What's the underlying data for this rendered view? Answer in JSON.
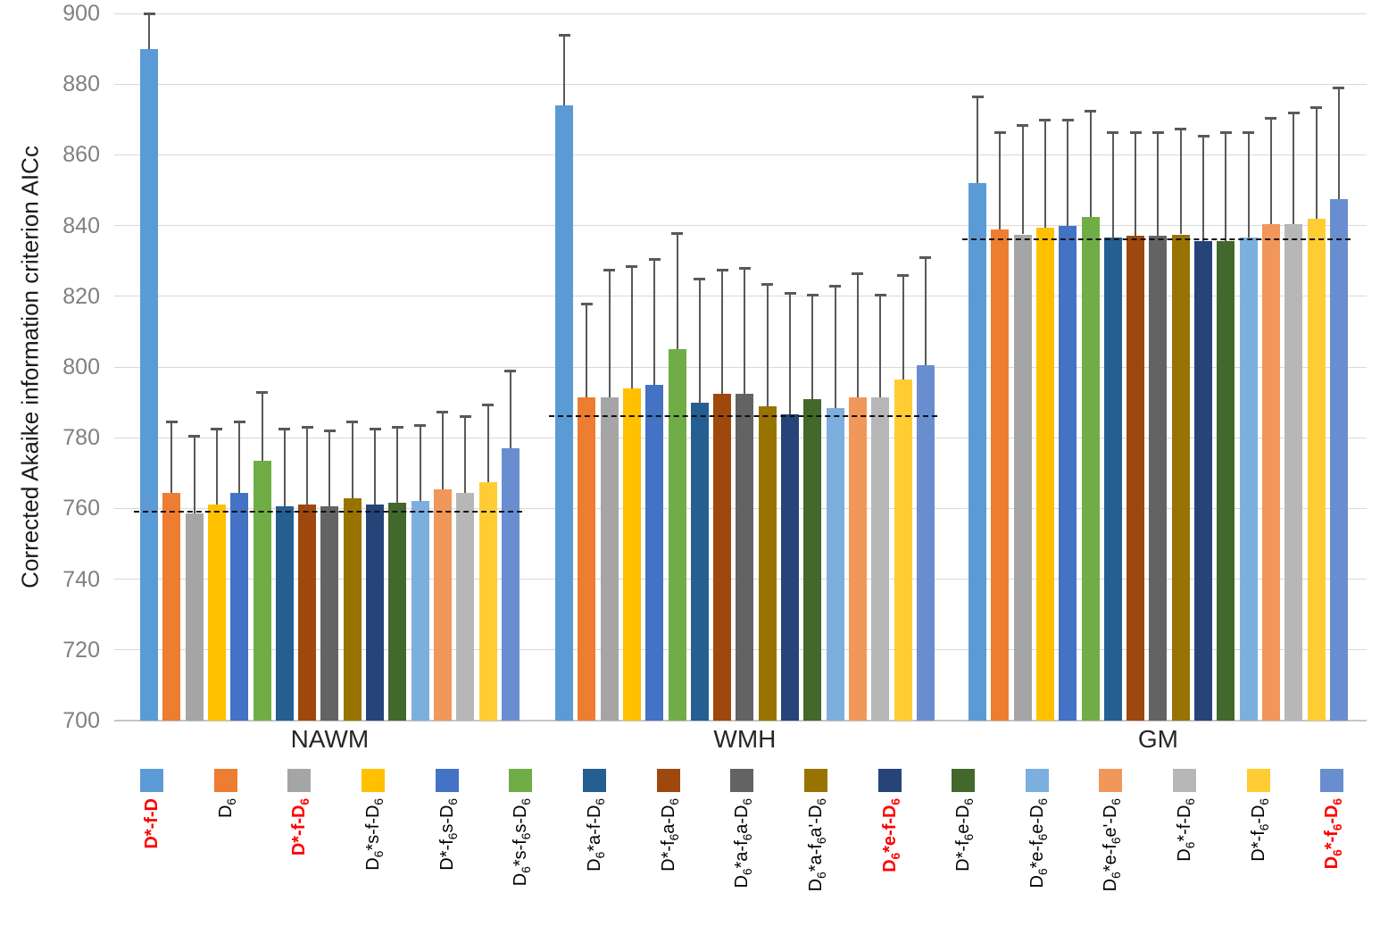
{
  "figure": {
    "background": "#ffffff",
    "y_axis_title": "Corrected Akaike information criterion AICc",
    "group_labels": [
      "NAWM",
      "WMH",
      "GM"
    ],
    "highlight_color": "#ff0000",
    "error_bar_color": "#595959",
    "gridline_color": "#d9d9d9"
  },
  "chart_data": {
    "type": "bar",
    "title": "",
    "xlabel": "",
    "ylabel": "Corrected Akaike information criterion AICc",
    "ylim": [
      700,
      900
    ],
    "yticks": [
      700,
      720,
      740,
      760,
      780,
      800,
      820,
      840,
      860,
      880,
      900
    ],
    "grid": true,
    "legend_position": "bottom",
    "legend_note": "labels use _6 to mark subscript 6; red=true entries are drawn in bold red",
    "categories": [
      "NAWM",
      "WMH",
      "GM"
    ],
    "groups": [
      {
        "label": "NAWM",
        "reference_line": 759
      },
      {
        "label": "WMH",
        "reference_line": 786
      },
      {
        "label": "GM",
        "reference_line": 836
      }
    ],
    "series": [
      {
        "label": "D*-f-D",
        "red": true,
        "color": "#5B9BD5",
        "values": [
          890,
          874,
          852
        ],
        "error_top": [
          900,
          894,
          876.5
        ]
      },
      {
        "label": "D_6",
        "red": false,
        "color": "#ED7D31",
        "values": [
          764.5,
          791.5,
          839
        ],
        "error_top": [
          784.5,
          818,
          866.5
        ]
      },
      {
        "label": "D*-f-D_6",
        "red": true,
        "color": "#A5A5A5",
        "values": [
          758.5,
          791.5,
          837.5
        ],
        "error_top": [
          780.5,
          827.5,
          868.5
        ]
      },
      {
        "label": "D_6*s-f-D_6",
        "red": false,
        "color": "#FFC000",
        "values": [
          761,
          794,
          839.5
        ],
        "error_top": [
          782.5,
          828.5,
          870
        ]
      },
      {
        "label": "D*-f_6s-D_6",
        "red": false,
        "color": "#4472C4",
        "values": [
          764.5,
          795,
          840
        ],
        "error_top": [
          784.5,
          830.5,
          870
        ]
      },
      {
        "label": "D_6*s-f_6s-D_6",
        "red": false,
        "color": "#70AD47",
        "values": [
          773.5,
          805,
          842.5
        ],
        "error_top": [
          793,
          838,
          872.5
        ]
      },
      {
        "label": "D_6*a-f-D_6",
        "red": false,
        "color": "#255E91",
        "values": [
          760.5,
          790,
          836.5
        ],
        "error_top": [
          782.5,
          825,
          866.5
        ]
      },
      {
        "label": "D*-f_6a-D_6",
        "red": false,
        "color": "#9E480E",
        "values": [
          761,
          792.5,
          837
        ],
        "error_top": [
          783,
          827.5,
          866.5
        ]
      },
      {
        "label": "D_6*a-f_6a-D_6",
        "red": false,
        "color": "#636363",
        "values": [
          760.5,
          792.5,
          837
        ],
        "error_top": [
          782,
          828,
          866.5
        ]
      },
      {
        "label": "D_6*a-f_6a'-D_6",
        "red": false,
        "color": "#997300",
        "values": [
          763,
          789,
          837.5
        ],
        "error_top": [
          784.5,
          823.5,
          867.5
        ]
      },
      {
        "label": "D_6*e-f-D_6",
        "red": true,
        "color": "#264478",
        "values": [
          761,
          786.5,
          835.5
        ],
        "error_top": [
          782.5,
          821,
          865.5
        ]
      },
      {
        "label": "D*-f_6e-D_6",
        "red": false,
        "color": "#43682B",
        "values": [
          761.5,
          791,
          835.5
        ],
        "error_top": [
          783,
          820.5,
          866.5
        ]
      },
      {
        "label": "D_6*e-f_6e-D_6",
        "red": false,
        "color": "#7CAFDD",
        "values": [
          762,
          788.5,
          836.5
        ],
        "error_top": [
          783.5,
          823,
          866.5
        ]
      },
      {
        "label": "D_6*e-f_6e'-D_6",
        "red": false,
        "color": "#F1975A",
        "values": [
          765.5,
          791.5,
          840.5
        ],
        "error_top": [
          787.5,
          826.5,
          870.5
        ]
      },
      {
        "label": "D_6*-f-D_6",
        "red": false,
        "color": "#B7B7B7",
        "values": [
          764.5,
          791.5,
          840.5
        ],
        "error_top": [
          786,
          820.5,
          872
        ]
      },
      {
        "label": "D*-f_6-D_6",
        "red": false,
        "color": "#FFCD33",
        "values": [
          767.5,
          796.5,
          842
        ],
        "error_top": [
          789.5,
          826,
          873.5
        ]
      },
      {
        "label": "D_6*-f_6-D_6",
        "red": true,
        "color": "#698ED0",
        "values": [
          777,
          800.5,
          847.5
        ],
        "error_top": [
          799,
          831,
          879
        ]
      }
    ]
  }
}
